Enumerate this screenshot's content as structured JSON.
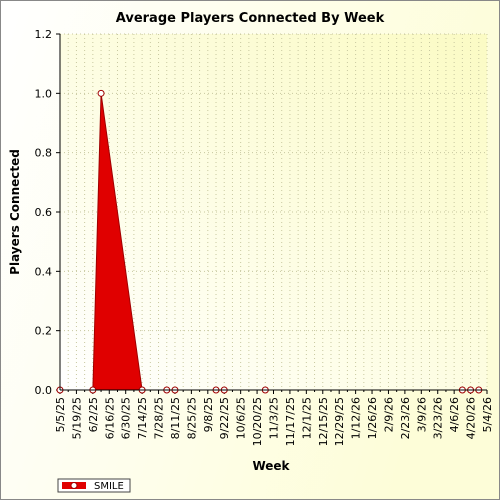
{
  "chart_data": {
    "type": "area",
    "title": "Average Players Connected By Week",
    "x_label": "Week",
    "y_label": "Players Connected",
    "categories": [
      "5/5/25",
      null,
      "5/19/25",
      null,
      "6/2/25",
      null,
      "6/16/25",
      null,
      "6/30/25",
      null,
      "7/14/25",
      null,
      "7/28/25",
      null,
      "8/11/25",
      null,
      "8/25/25",
      null,
      "9/8/25",
      null,
      "9/22/25",
      null,
      "10/6/25",
      null,
      "10/20/25",
      null,
      "11/3/25",
      null,
      "11/17/25",
      null,
      "12/1/25",
      null,
      "12/15/25",
      null,
      "12/29/25",
      null,
      "1/12/26",
      null,
      "1/26/26",
      null,
      "2/9/26",
      null,
      "2/23/26",
      null,
      "3/9/26",
      null,
      "3/23/26",
      null,
      "4/6/26",
      null,
      "4/20/26",
      null,
      "5/4/26"
    ],
    "series": [
      {
        "name": "SMILE",
        "color": "#e00000",
        "values": [
          0,
          null,
          null,
          null,
          0,
          1,
          null,
          null,
          null,
          null,
          0,
          null,
          null,
          0,
          0,
          null,
          null,
          null,
          null,
          0,
          0,
          null,
          null,
          null,
          null,
          0,
          null,
          null,
          null,
          null,
          null,
          null,
          null,
          null,
          null,
          null,
          null,
          null,
          null,
          null,
          null,
          null,
          null,
          null,
          null,
          null,
          null,
          null,
          null,
          0,
          0,
          0,
          null
        ]
      }
    ],
    "ylim": [
      0,
      1.2
    ],
    "yticks": [
      {
        "value": 0,
        "label": "0.0"
      },
      0.2,
      0.4,
      0.6,
      0.8,
      {
        "value": 1,
        "label": "1.0"
      },
      1.2
    ],
    "grid": true,
    "connect_gaps": true,
    "legend": "bottom-left"
  }
}
